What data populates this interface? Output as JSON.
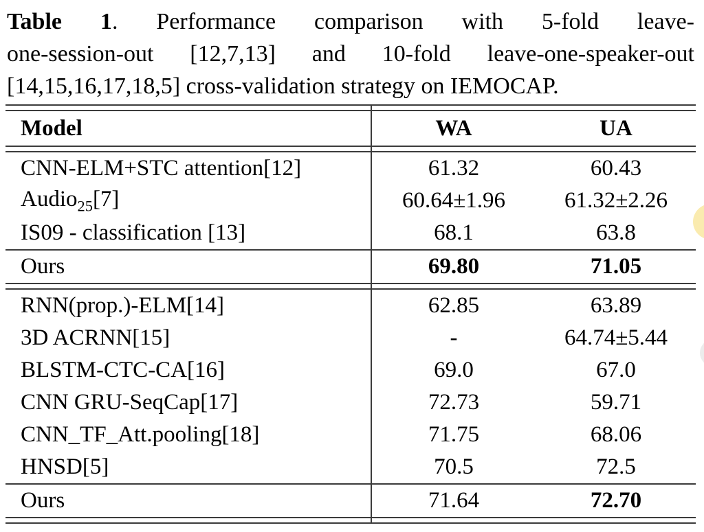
{
  "caption": {
    "label": "Table 1",
    "line1_rest": ".  Performance comparison with 5-fold leave-",
    "line2": "one-session-out [12,7,13] and 10-fold leave-one-speaker-out",
    "line3": "[14,15,16,17,18,5] cross-validation strategy on IEMOCAP."
  },
  "table": {
    "headers": {
      "model": "Model",
      "wa": "WA",
      "ua": "UA"
    },
    "sections": [
      {
        "rows": [
          {
            "model": "CNN-ELM+STC attention[12]",
            "wa": "61.32",
            "ua": "60.43"
          },
          {
            "model_parts": {
              "pre": "Audio",
              "sub": "25",
              "post": "[7]"
            },
            "wa": "60.64±1.96",
            "ua": "61.32±2.26"
          },
          {
            "model": "IS09 - classification [13]",
            "wa": "68.1",
            "ua": "63.8"
          }
        ],
        "summary": {
          "model": "Ours",
          "wa": "69.80",
          "ua": "71.05",
          "wa_bold": true,
          "ua_bold": true
        }
      },
      {
        "rows": [
          {
            "model": "RNN(prop.)-ELM[14]",
            "wa": "62.85",
            "ua": "63.89"
          },
          {
            "model": "3D ACRNN[15]",
            "wa": "-",
            "ua": "64.74±5.44"
          },
          {
            "model": "BLSTM-CTC-CA[16]",
            "wa": "69.0",
            "ua": "67.0"
          },
          {
            "model": "CNN GRU-SeqCap[17]",
            "wa": "72.73",
            "ua": "59.71"
          },
          {
            "model": "CNN_TF_Att.pooling[18]",
            "wa": "71.75",
            "ua": "68.06"
          },
          {
            "model": "HNSD[5]",
            "wa": "70.5",
            "ua": "72.5"
          }
        ],
        "summary": {
          "model": "Ours",
          "wa": "71.64",
          "ua": "72.70",
          "wa_bold": false,
          "ua_bold": true
        }
      }
    ]
  },
  "artifacts": {
    "highlight_color": "#FAEBAF",
    "faint_color": "#ECECEC",
    "rule_color": "#3b3b3b",
    "text_color": "#000000"
  }
}
